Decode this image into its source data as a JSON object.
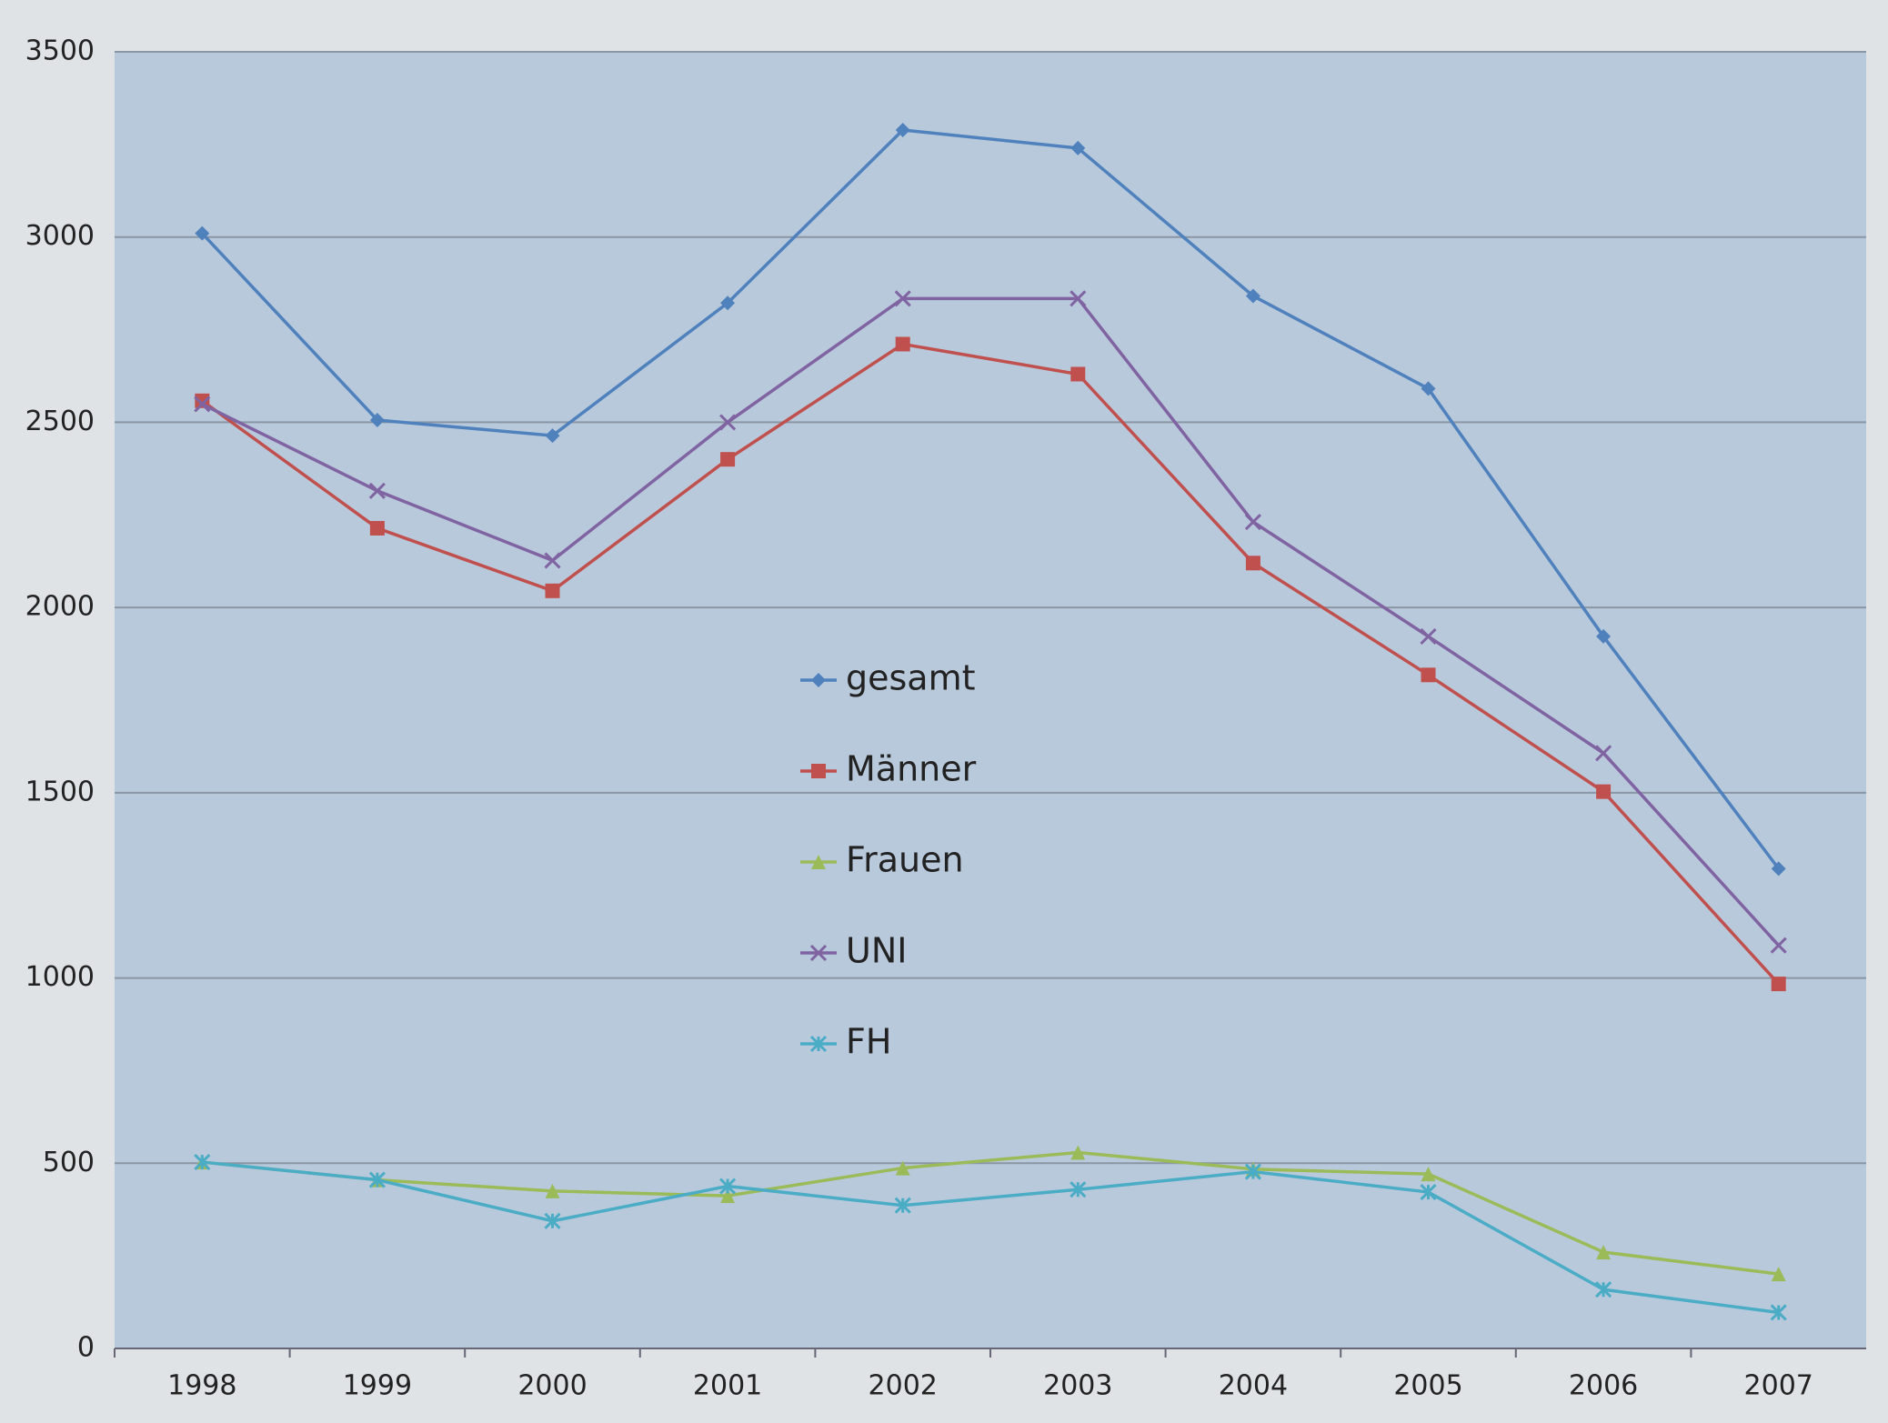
{
  "chart_data": {
    "type": "line",
    "categories": [
      "1998",
      "1999",
      "2000",
      "2001",
      "2002",
      "2003",
      "2004",
      "2005",
      "2006",
      "2007"
    ],
    "series": [
      {
        "name": "gesamt",
        "color": "#4f81bd",
        "marker": "diamond",
        "values": [
          3010,
          2506,
          2464,
          2822,
          3289,
          3240,
          2841,
          2591,
          1922,
          1295
        ]
      },
      {
        "name": "Männer",
        "color": "#c0504d",
        "marker": "square",
        "values": [
          2558,
          2214,
          2045,
          2400,
          2711,
          2630,
          2120,
          1818,
          1503,
          984
        ]
      },
      {
        "name": "Frauen",
        "color": "#9bbb59",
        "marker": "triangle",
        "values": [
          503,
          455,
          425,
          412,
          487,
          529,
          484,
          471,
          260,
          201
        ]
      },
      {
        "name": "UNI",
        "color": "#8064a2",
        "marker": "x",
        "values": [
          2549,
          2315,
          2127,
          2500,
          2834,
          2834,
          2231,
          1922,
          1607,
          1088
        ]
      },
      {
        "name": "FH",
        "color": "#4bacc6",
        "marker": "star",
        "values": [
          503,
          455,
          344,
          438,
          386,
          429,
          477,
          422,
          159,
          97
        ]
      }
    ],
    "ylim": [
      0,
      3500
    ],
    "yticks": [
      0,
      500,
      1000,
      1500,
      2000,
      2500,
      3000,
      3500
    ],
    "grid": true
  }
}
